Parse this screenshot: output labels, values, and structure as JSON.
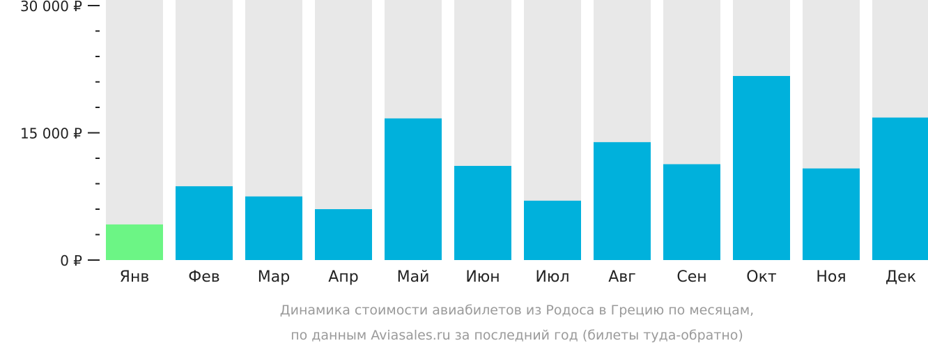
{
  "chart_data": {
    "type": "bar",
    "categories": [
      "Янв",
      "Фев",
      "Мар",
      "Апр",
      "Май",
      "Июн",
      "Июл",
      "Авг",
      "Сен",
      "Окт",
      "Ноя",
      "Дек"
    ],
    "values": [
      4200,
      8700,
      7500,
      6000,
      16700,
      11100,
      7000,
      13900,
      11300,
      21700,
      10800,
      16800
    ],
    "ylim": [
      0,
      30000
    ],
    "yticks": [
      {
        "value": 0,
        "label": "0 ₽"
      },
      {
        "value": 15000,
        "label": "15 000 ₽"
      },
      {
        "value": 30000,
        "label": "30 000 ₽"
      }
    ],
    "minor_tick_step": 3000,
    "caption": [
      "Динамика стоимости авиабилетов из Родоса в Грецию по месяцам,",
      "по данным Aviasales.ru за последний год (билеты туда-обратно)"
    ],
    "colors": {
      "bar": "#00b1dc",
      "highlight_bar": "#6cf585",
      "background_bar": "#e8e8e8",
      "axis": "#222222"
    },
    "highlight_index": 0,
    "grid": false
  }
}
